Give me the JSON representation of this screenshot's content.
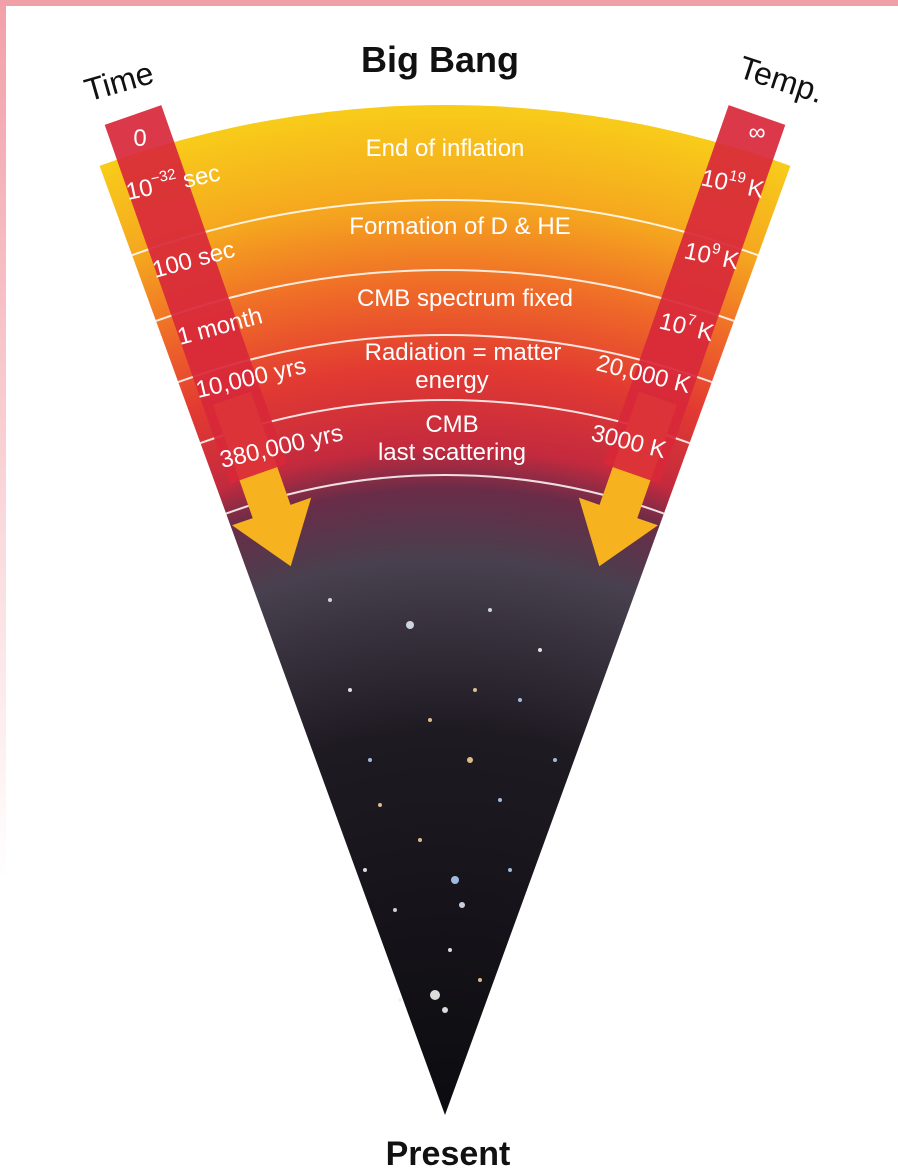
{
  "title": "Big Bang",
  "time_axis": {
    "label": "Time",
    "marks": [
      {
        "text": "0"
      },
      {
        "base": "10",
        "exp": "−32",
        "unit": "sec"
      },
      {
        "text": "100 sec"
      },
      {
        "text": "1 month"
      },
      {
        "text": "10,000 yrs"
      },
      {
        "text": "380,000 yrs"
      }
    ]
  },
  "temp_axis": {
    "label": "Temp.",
    "marks": [
      {
        "text": "∞"
      },
      {
        "base": "10",
        "exp": "19",
        "unit": "K"
      },
      {
        "base": "10",
        "exp": "9",
        "unit": "K"
      },
      {
        "base": "10",
        "exp": "7",
        "unit": "K"
      },
      {
        "text": "20,000 K"
      },
      {
        "text": "3000 K"
      }
    ]
  },
  "bands": [
    {
      "lines": [
        "End of inflation"
      ]
    },
    {
      "lines": [
        "Formation of D & HE"
      ]
    },
    {
      "lines": [
        "CMB spectrum fixed"
      ]
    },
    {
      "lines": [
        "Radiation = matter",
        "energy"
      ]
    },
    {
      "lines": [
        "CMB",
        "last scattering"
      ]
    }
  ],
  "bottom_label": "Present"
}
